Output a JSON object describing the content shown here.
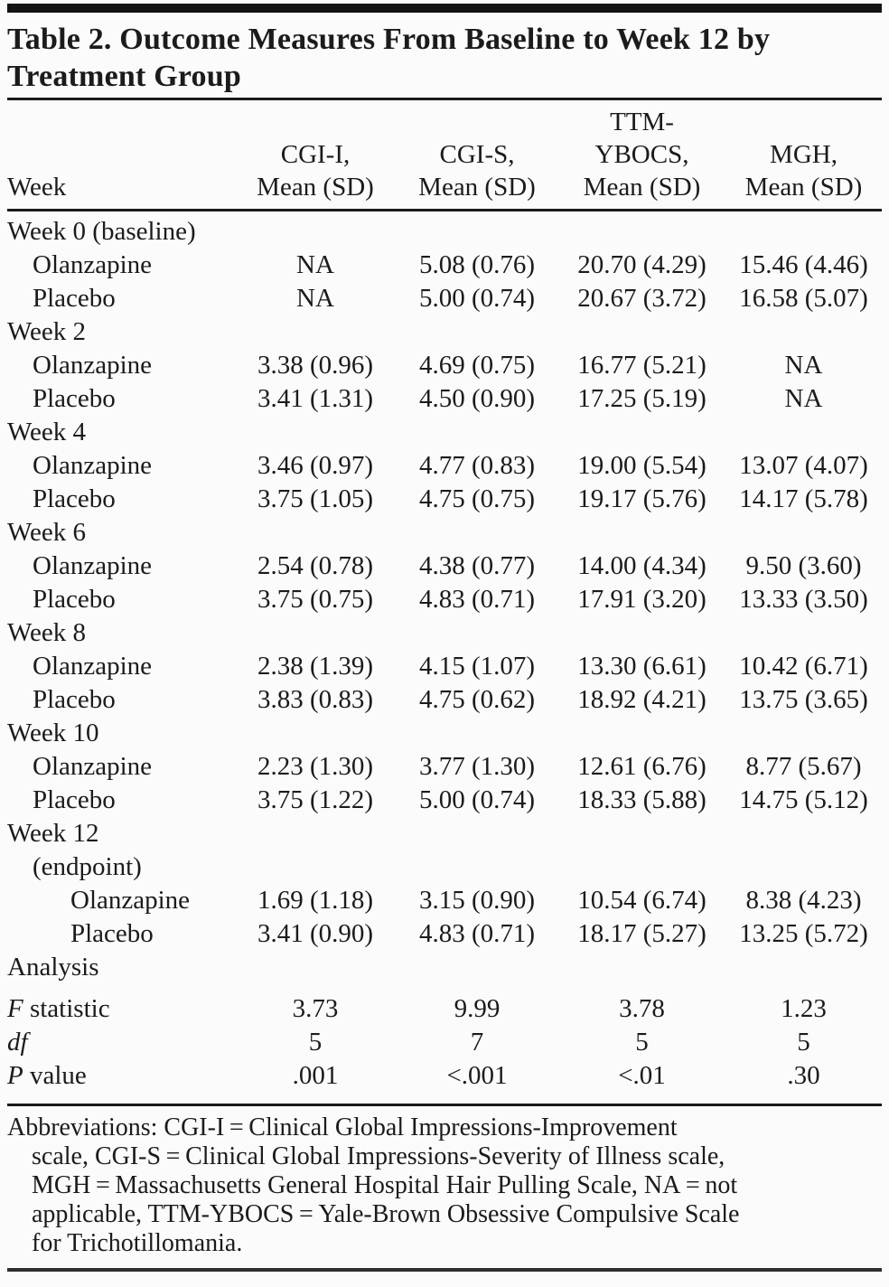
{
  "title": {
    "lines": [
      "Table 2. Outcome Measures From Baseline to Week 12 by",
      "Treatment Group"
    ]
  },
  "table": {
    "header": {
      "week_label": "Week",
      "columns": [
        {
          "lines": [
            "CGI-I,",
            "Mean (SD)"
          ]
        },
        {
          "lines": [
            "CGI-S,",
            "Mean (SD)"
          ]
        },
        {
          "lines": [
            "TTM-",
            "YBOCS,",
            "Mean (SD)"
          ]
        },
        {
          "lines": [
            "MGH,",
            "Mean (SD)"
          ]
        }
      ]
    },
    "rows": [
      {
        "type": "section",
        "indent": 0,
        "label_italic": "",
        "label": "Week 0 (baseline)",
        "values": [
          "",
          "",
          "",
          ""
        ]
      },
      {
        "type": "data",
        "indent": 1,
        "label_italic": "",
        "label": "Olanzapine",
        "values": [
          "NA",
          "5.08 (0.76)",
          "20.70 (4.29)",
          "15.46 (4.46)"
        ]
      },
      {
        "type": "data",
        "indent": 1,
        "label_italic": "",
        "label": "Placebo",
        "values": [
          "NA",
          "5.00 (0.74)",
          "20.67 (3.72)",
          "16.58 (5.07)"
        ]
      },
      {
        "type": "section",
        "indent": 0,
        "label_italic": "",
        "label": "Week 2",
        "values": [
          "",
          "",
          "",
          ""
        ]
      },
      {
        "type": "data",
        "indent": 1,
        "label_italic": "",
        "label": "Olanzapine",
        "values": [
          "3.38 (0.96)",
          "4.69 (0.75)",
          "16.77 (5.21)",
          "NA"
        ]
      },
      {
        "type": "data",
        "indent": 1,
        "label_italic": "",
        "label": "Placebo",
        "values": [
          "3.41 (1.31)",
          "4.50 (0.90)",
          "17.25 (5.19)",
          "NA"
        ]
      },
      {
        "type": "section",
        "indent": 0,
        "label_italic": "",
        "label": "Week 4",
        "values": [
          "",
          "",
          "",
          ""
        ]
      },
      {
        "type": "data",
        "indent": 1,
        "label_italic": "",
        "label": "Olanzapine",
        "values": [
          "3.46 (0.97)",
          "4.77 (0.83)",
          "19.00 (5.54)",
          "13.07 (4.07)"
        ]
      },
      {
        "type": "data",
        "indent": 1,
        "label_italic": "",
        "label": "Placebo",
        "values": [
          "3.75 (1.05)",
          "4.75 (0.75)",
          "19.17 (5.76)",
          "14.17 (5.78)"
        ]
      },
      {
        "type": "section",
        "indent": 0,
        "label_italic": "",
        "label": "Week 6",
        "values": [
          "",
          "",
          "",
          ""
        ]
      },
      {
        "type": "data",
        "indent": 1,
        "label_italic": "",
        "label": "Olanzapine",
        "values": [
          "2.54 (0.78)",
          "4.38 (0.77)",
          "14.00 (4.34)",
          "9.50 (3.60)"
        ]
      },
      {
        "type": "data",
        "indent": 1,
        "label_italic": "",
        "label": "Placebo",
        "values": [
          "3.75 (0.75)",
          "4.83 (0.71)",
          "17.91 (3.20)",
          "13.33 (3.50)"
        ]
      },
      {
        "type": "section",
        "indent": 0,
        "label_italic": "",
        "label": "Week 8",
        "values": [
          "",
          "",
          "",
          ""
        ]
      },
      {
        "type": "data",
        "indent": 1,
        "label_italic": "",
        "label": "Olanzapine",
        "values": [
          "2.38 (1.39)",
          "4.15 (1.07)",
          "13.30 (6.61)",
          "10.42 (6.71)"
        ]
      },
      {
        "type": "data",
        "indent": 1,
        "label_italic": "",
        "label": "Placebo",
        "values": [
          "3.83 (0.83)",
          "4.75 (0.62)",
          "18.92 (4.21)",
          "13.75 (3.65)"
        ]
      },
      {
        "type": "section",
        "indent": 0,
        "label_italic": "",
        "label": "Week 10",
        "values": [
          "",
          "",
          "",
          ""
        ]
      },
      {
        "type": "data",
        "indent": 1,
        "label_italic": "",
        "label": "Olanzapine",
        "values": [
          "2.23 (1.30)",
          "3.77 (1.30)",
          "12.61 (6.76)",
          "8.77 (5.67)"
        ]
      },
      {
        "type": "data",
        "indent": 1,
        "label_italic": "",
        "label": "Placebo",
        "values": [
          "3.75 (1.22)",
          "5.00 (0.74)",
          "18.33 (5.88)",
          "14.75 (5.12)"
        ]
      },
      {
        "type": "section",
        "indent": 0,
        "label_italic": "",
        "label": "Week 12",
        "values": [
          "",
          "",
          "",
          ""
        ]
      },
      {
        "type": "section",
        "indent": 1,
        "label_italic": "",
        "label": "(endpoint)",
        "values": [
          "",
          "",
          "",
          ""
        ]
      },
      {
        "type": "data",
        "indent": 2,
        "label_italic": "",
        "label": "Olanzapine",
        "values": [
          "1.69 (1.18)",
          "3.15 (0.90)",
          "10.54 (6.74)",
          "8.38 (4.23)"
        ]
      },
      {
        "type": "data",
        "indent": 2,
        "label_italic": "",
        "label": "Placebo",
        "values": [
          "3.41 (0.90)",
          "4.83 (0.71)",
          "18.17 (5.27)",
          "13.25 (5.72)"
        ]
      },
      {
        "type": "section",
        "indent": 0,
        "label_italic": "",
        "label": "Analysis",
        "values": [
          "",
          "",
          "",
          ""
        ]
      },
      {
        "type": "spacer"
      },
      {
        "type": "stat",
        "indent": 0,
        "label_italic": "F",
        "label": " statistic",
        "values": [
          "3.73",
          "9.99",
          "3.78",
          "1.23"
        ]
      },
      {
        "type": "stat",
        "indent": 0,
        "label_italic": "df",
        "label": "",
        "values": [
          "5",
          "7",
          "5",
          "5"
        ]
      },
      {
        "type": "stat",
        "indent": 0,
        "label_italic": "P",
        "label": " value",
        "values": [
          ".001",
          "<.001",
          "<.01",
          ".30"
        ]
      }
    ]
  },
  "footnote": {
    "lines": [
      "Abbreviations: CGI-I = Clinical Global Impressions-Improvement",
      "scale, CGI-S = Clinical Global Impressions-Severity of Illness scale,",
      "MGH = Massachusetts General Hospital Hair Pulling Scale, NA = not",
      "applicable, TTM-YBOCS = Yale-Brown Obsessive Compulsive Scale",
      "for Trichotillomania."
    ]
  }
}
